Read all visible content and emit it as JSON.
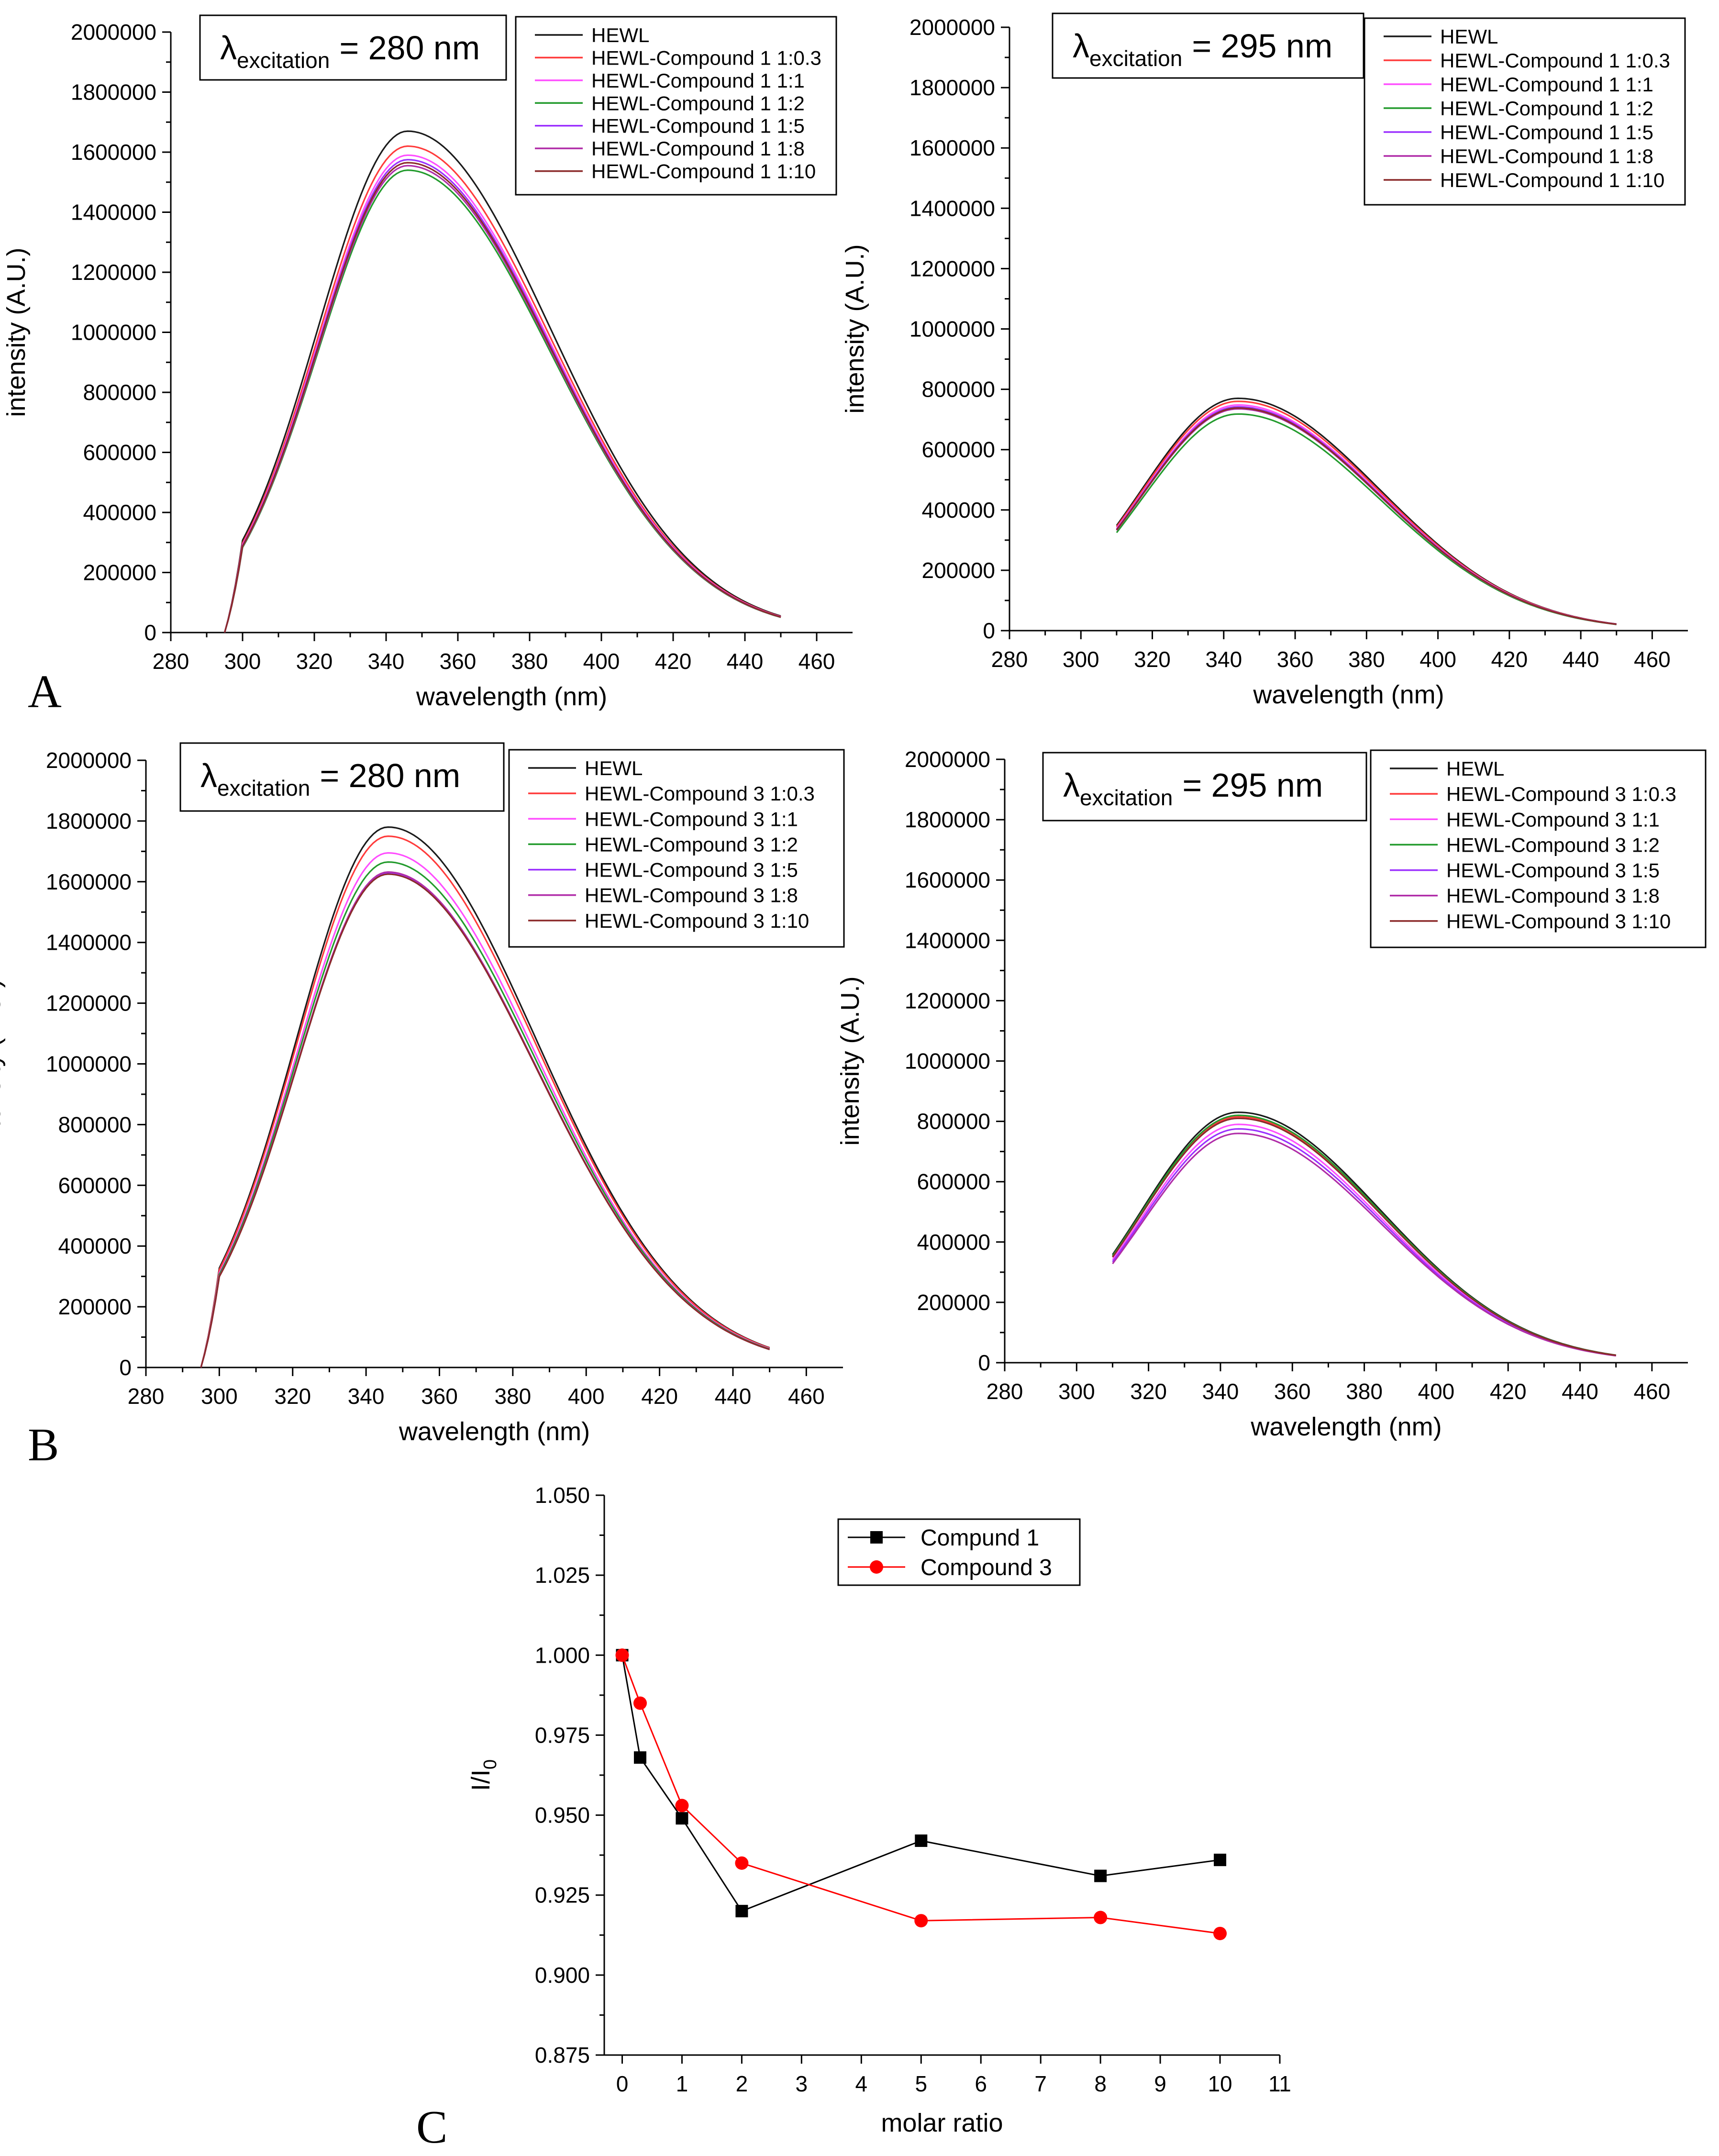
{
  "figure": {
    "panel_labels": [
      "A",
      "B",
      "C"
    ]
  },
  "colors": {
    "HEWL": "#1a1a1a",
    "r03": "#ff3b3b",
    "r1": "#ff4dff",
    "r2": "#239b2d",
    "r5": "#9b30ff",
    "r8": "#b02ca8",
    "r10": "#8b2a2a",
    "c1": "#000000",
    "c3": "#ff0000"
  },
  "chart_data": [
    {
      "id": "A1",
      "type": "line",
      "title": "",
      "excitation": {
        "prefix": "λ",
        "subscript": "excitation",
        "value": "= 280 nm"
      },
      "xlabel": "wavelength (nm)",
      "ylabel": "intensity (A.U.)",
      "xlim": [
        280,
        470
      ],
      "ylim": [
        0,
        2000000
      ],
      "xticks": [
        280,
        300,
        320,
        340,
        360,
        380,
        400,
        420,
        440,
        460
      ],
      "yticks": [
        0,
        200000,
        400000,
        600000,
        800000,
        1000000,
        1200000,
        1400000,
        1600000,
        1800000,
        2000000
      ],
      "x_start": 295,
      "x_end": 450,
      "peak_x": 346,
      "end_value": 55000,
      "series": [
        {
          "name": "HEWL",
          "color": "HEWL",
          "peak": 1670000
        },
        {
          "name": "HEWL-Compound 1 1:0.3",
          "color": "r03",
          "peak": 1620000
        },
        {
          "name": "HEWL-Compound 1 1:1",
          "color": "r1",
          "peak": 1590000
        },
        {
          "name": "HEWL-Compound 1 1:2",
          "color": "r2",
          "peak": 1540000
        },
        {
          "name": "HEWL-Compound 1 1:5",
          "color": "r5",
          "peak": 1575000
        },
        {
          "name": "HEWL-Compound 1 1:8",
          "color": "r8",
          "peak": 1555000
        },
        {
          "name": "HEWL-Compound 1 1:10",
          "color": "r10",
          "peak": 1565000
        }
      ]
    },
    {
      "id": "A2",
      "type": "line",
      "title": "",
      "excitation": {
        "prefix": "λ",
        "subscript": "excitation",
        "value": "= 295 nm"
      },
      "xlabel": "wavelength (nm)",
      "ylabel": "intensity (A.U.)",
      "xlim": [
        280,
        470
      ],
      "ylim": [
        0,
        2000000
      ],
      "xticks": [
        280,
        300,
        320,
        340,
        360,
        380,
        400,
        420,
        440,
        460
      ],
      "yticks": [
        0,
        200000,
        400000,
        600000,
        800000,
        1000000,
        1200000,
        1400000,
        1600000,
        1800000,
        2000000
      ],
      "x_start": 310,
      "x_end": 450,
      "peak_x": 344,
      "end_value": 22000,
      "series": [
        {
          "name": "HEWL",
          "color": "HEWL",
          "peak": 770000
        },
        {
          "name": "HEWL-Compound 1 1:0.3",
          "color": "r03",
          "peak": 760000
        },
        {
          "name": "HEWL-Compound 1 1:1",
          "color": "r1",
          "peak": 748000
        },
        {
          "name": "HEWL-Compound 1 1:2",
          "color": "r2",
          "peak": 718000
        },
        {
          "name": "HEWL-Compound 1 1:5",
          "color": "r5",
          "peak": 742000
        },
        {
          "name": "HEWL-Compound 1 1:8",
          "color": "r8",
          "peak": 735000
        },
        {
          "name": "HEWL-Compound 1 1:10",
          "color": "r10",
          "peak": 738000
        }
      ]
    },
    {
      "id": "B1",
      "type": "line",
      "title": "",
      "excitation": {
        "prefix": "λ",
        "subscript": "excitation",
        "value": "= 280 nm"
      },
      "xlabel": "wavelength (nm)",
      "ylabel": "intensity (A.U.)",
      "xlim": [
        280,
        470
      ],
      "ylim": [
        0,
        2000000
      ],
      "xticks": [
        280,
        300,
        320,
        340,
        360,
        380,
        400,
        420,
        440,
        460
      ],
      "yticks": [
        0,
        200000,
        400000,
        600000,
        800000,
        1000000,
        1200000,
        1400000,
        1600000,
        1800000,
        2000000
      ],
      "x_start": 295,
      "x_end": 450,
      "peak_x": 346,
      "end_value": 65000,
      "series": [
        {
          "name": "HEWL",
          "color": "HEWL",
          "peak": 1780000
        },
        {
          "name": "HEWL-Compound 3 1:0.3",
          "color": "r03",
          "peak": 1750000
        },
        {
          "name": "HEWL-Compound 3 1:1",
          "color": "r1",
          "peak": 1695000
        },
        {
          "name": "HEWL-Compound 3 1:2",
          "color": "r2",
          "peak": 1665000
        },
        {
          "name": "HEWL-Compound 3 1:5",
          "color": "r5",
          "peak": 1630000
        },
        {
          "name": "HEWL-Compound 3 1:8",
          "color": "r8",
          "peak": 1632000
        },
        {
          "name": "HEWL-Compound 3 1:10",
          "color": "r10",
          "peak": 1625000
        }
      ]
    },
    {
      "id": "B2",
      "type": "line",
      "title": "",
      "excitation": {
        "prefix": "λ",
        "subscript": "excitation",
        "value": "= 295 nm"
      },
      "xlabel": "wavelength (nm)",
      "ylabel": "intensity (A.U.)",
      "xlim": [
        280,
        470
      ],
      "ylim": [
        0,
        2000000
      ],
      "xticks": [
        280,
        300,
        320,
        340,
        360,
        380,
        400,
        420,
        440,
        460
      ],
      "yticks": [
        0,
        200000,
        400000,
        600000,
        800000,
        1000000,
        1200000,
        1400000,
        1600000,
        1800000,
        2000000
      ],
      "x_start": 310,
      "x_end": 450,
      "peak_x": 345,
      "end_value": 25000,
      "series": [
        {
          "name": "HEWL",
          "color": "HEWL",
          "peak": 830000
        },
        {
          "name": "HEWL-Compound 3 1:0.3",
          "color": "r03",
          "peak": 815000
        },
        {
          "name": "HEWL-Compound 3 1:1",
          "color": "r1",
          "peak": 790000
        },
        {
          "name": "HEWL-Compound 3 1:2",
          "color": "r2",
          "peak": 820000
        },
        {
          "name": "HEWL-Compound 3 1:5",
          "color": "r5",
          "peak": 775000
        },
        {
          "name": "HEWL-Compound 3 1:8",
          "color": "r8",
          "peak": 760000
        },
        {
          "name": "HEWL-Compound 3 1:10",
          "color": "r10",
          "peak": 810000
        }
      ]
    },
    {
      "id": "C",
      "type": "line",
      "title": "",
      "xlabel": "molar ratio",
      "ylabel": "I/I",
      "ylabel_sub": "0",
      "xlim": [
        -0.3,
        11
      ],
      "ylim": [
        0.875,
        1.05
      ],
      "xticks": [
        0,
        1,
        2,
        3,
        4,
        5,
        6,
        7,
        8,
        9,
        10,
        11
      ],
      "yticks": [
        "0.875",
        "0.900",
        "0.925",
        "0.950",
        "0.975",
        "1.000",
        "1.025",
        "1.050"
      ],
      "series": [
        {
          "name": "Compund 1",
          "color": "c1",
          "marker": "square",
          "x": [
            0,
            0.3,
            1,
            2,
            5,
            8,
            10
          ],
          "y": [
            1.0,
            0.968,
            0.949,
            0.92,
            0.942,
            0.931,
            0.936
          ]
        },
        {
          "name": "Compound 3",
          "color": "c3",
          "marker": "circle",
          "x": [
            0,
            0.3,
            1,
            2,
            5,
            8,
            10
          ],
          "y": [
            1.0,
            0.985,
            0.953,
            0.935,
            0.917,
            0.918,
            0.913
          ]
        }
      ]
    }
  ]
}
